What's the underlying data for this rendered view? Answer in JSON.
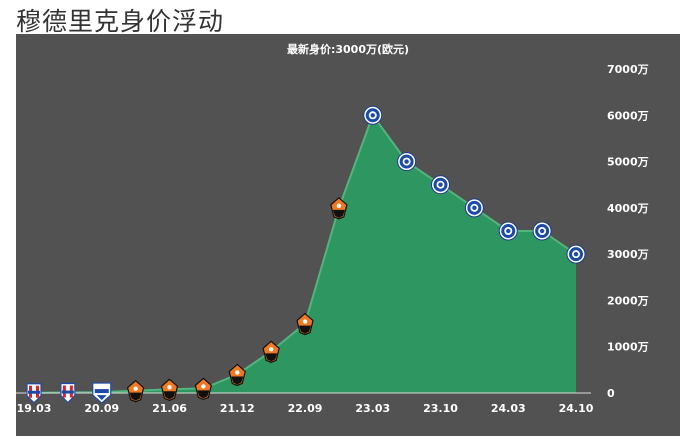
{
  "page_title": "穆德里克身价浮动",
  "chart_data": {
    "type": "area",
    "title": "",
    "subtitle": "最新身价:3000万(欧元)",
    "xlabel": "",
    "ylabel": "",
    "ylim": [
      0,
      7000
    ],
    "y_ticks": [
      "0",
      "1000万",
      "2000万",
      "3000万",
      "4000万",
      "5000万",
      "6000万",
      "7000万"
    ],
    "x_ticks": [
      "19.03",
      "20.09",
      "21.06",
      "21.12",
      "22.09",
      "23.03",
      "23.10",
      "24.03",
      "24.10"
    ],
    "grid": false,
    "fill_color": "#2e9660",
    "background_color": "#525252",
    "points": [
      {
        "x": "19.03",
        "value": 5,
        "club_icon": "sky-blue-striped-crest-icon"
      },
      {
        "x": "19.09",
        "value": 10,
        "club_icon": "sky-blue-striped-crest-icon"
      },
      {
        "x": "20.09",
        "value": 20,
        "club_icon": "desna-crest-icon"
      },
      {
        "x": "21.01",
        "value": 50,
        "club_icon": "shakhtar-crest-icon"
      },
      {
        "x": "21.06",
        "value": 80,
        "club_icon": "shakhtar-crest-icon"
      },
      {
        "x": "21.09",
        "value": 100,
        "club_icon": "shakhtar-crest-icon"
      },
      {
        "x": "21.12",
        "value": 400,
        "club_icon": "shakhtar-crest-icon"
      },
      {
        "x": "22.03",
        "value": 900,
        "club_icon": "shakhtar-crest-icon"
      },
      {
        "x": "22.09",
        "value": 1500,
        "club_icon": "shakhtar-crest-icon"
      },
      {
        "x": "22.12",
        "value": 4000,
        "club_icon": "shakhtar-crest-icon"
      },
      {
        "x": "23.03",
        "value": 6000,
        "club_icon": "chelsea-crest-icon"
      },
      {
        "x": "23.06",
        "value": 5000,
        "club_icon": "chelsea-crest-icon"
      },
      {
        "x": "23.10",
        "value": 4500,
        "club_icon": "chelsea-crest-icon"
      },
      {
        "x": "23.12",
        "value": 4000,
        "club_icon": "chelsea-crest-icon"
      },
      {
        "x": "24.03",
        "value": 3500,
        "club_icon": "chelsea-crest-icon"
      },
      {
        "x": "24.06",
        "value": 3500,
        "club_icon": "chelsea-crest-icon"
      },
      {
        "x": "24.10",
        "value": 3000,
        "club_icon": "chelsea-crest-icon"
      }
    ]
  }
}
